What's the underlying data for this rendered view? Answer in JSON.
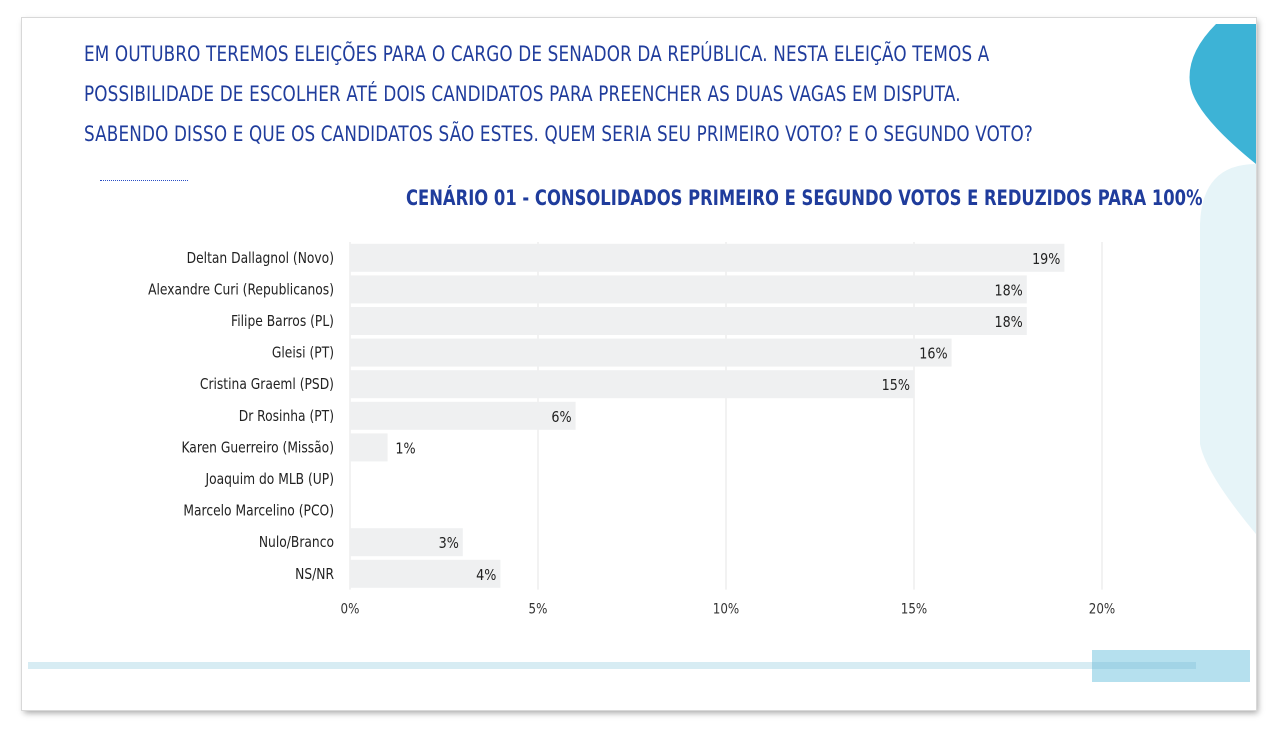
{
  "question": {
    "line1": "EM OUTUBRO TEREMOS ELEIÇÕES PARA O CARGO DE SENADOR DA REPÚBLICA. NESTA ELEIÇÃO TEMOS A",
    "line2": "POSSIBILIDADE DE ESCOLHER ATÉ DOIS CANDIDATOS PARA PREENCHER AS DUAS VAGAS EM DISPUTA.",
    "line3": "SABENDO DISSO E QUE OS CANDIDATOS SÃO ESTES. QUEM SERIA SEU PRIMEIRO VOTO? E O SEGUNDO VOTO?"
  },
  "colors": {
    "text_blue": "#1f3c9c",
    "bar": "#eff0f1",
    "grid": "#e6e6e6",
    "accent_cyan": "#3db3d6",
    "accent_light": "#e6f4f8"
  },
  "chart_data": {
    "type": "bar",
    "orientation": "horizontal",
    "title": "CENÁRIO 01 - CONSOLIDADOS PRIMEIRO E SEGUNDO VOTOS E REDUZIDOS PARA 100%",
    "categories": [
      "Deltan Dallagnol (Novo)",
      "Alexandre Curi (Republicanos)",
      "Filipe Barros (PL)",
      "Gleisi (PT)",
      "Cristina Graeml (PSD)",
      "Dr Rosinha (PT)",
      "Karen Guerreiro (Missão)",
      "Joaquim do MLB (UP)",
      "Marcelo Marcelino (PCO)",
      "Nulo/Branco",
      "NS/NR"
    ],
    "values": [
      19,
      18,
      18,
      16,
      15,
      6,
      1,
      0,
      0,
      3,
      4
    ],
    "value_labels": [
      "19%",
      "18%",
      "18%",
      "16%",
      "15%",
      "6%",
      "1%",
      "",
      "",
      "3%",
      "4%"
    ],
    "xlim": [
      0,
      20
    ],
    "xticks": [
      0,
      5,
      10,
      15,
      20
    ],
    "xtick_labels": [
      "0%",
      "5%",
      "10%",
      "15%",
      "20%"
    ],
    "grid": true
  }
}
